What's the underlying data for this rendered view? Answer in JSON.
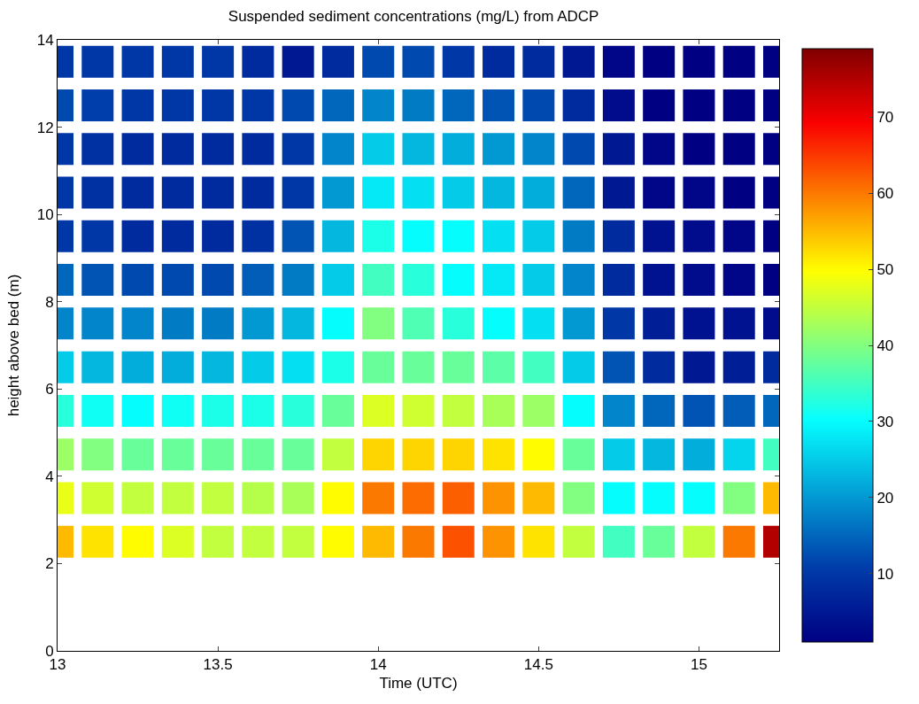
{
  "chart_data": {
    "type": "scatter",
    "title": "Suspended sediment concentrations (mg/L) from ADCP",
    "xlabel": "Time (UTC)",
    "ylabel": "height above bed (m)",
    "marker": "square",
    "x": [
      13,
      13.125,
      13.25,
      13.375,
      13.5,
      13.625,
      13.75,
      13.875,
      14,
      14.125,
      14.25,
      14.375,
      14.5,
      14.625,
      14.75,
      14.875,
      15,
      15.125,
      15.25,
      13,
      13.125,
      13.25,
      13.375,
      13.5,
      13.625,
      13.75,
      13.875,
      14,
      14.125,
      14.25,
      14.375,
      14.5,
      14.625,
      14.75,
      14.875,
      15,
      15.125,
      15.25,
      13,
      13.125,
      13.25,
      13.375,
      13.5,
      13.625,
      13.75,
      13.875,
      14,
      14.125,
      14.25,
      14.375,
      14.5,
      14.625,
      14.75,
      14.875,
      15,
      15.125,
      15.25,
      13,
      13.125,
      13.25,
      13.375,
      13.5,
      13.625,
      13.75,
      13.875,
      14,
      14.125,
      14.25,
      14.375,
      14.5,
      14.625,
      14.75,
      14.875,
      15,
      15.125,
      15.25,
      13,
      13.125,
      13.25,
      13.375,
      13.5,
      13.625,
      13.75,
      13.875,
      14,
      14.125,
      14.25,
      14.375,
      14.5,
      14.625,
      14.75,
      14.875,
      15,
      15.125,
      15.25,
      13,
      13.125,
      13.25,
      13.375,
      13.5,
      13.625,
      13.75,
      13.875,
      14,
      14.125,
      14.25,
      14.375,
      14.5,
      14.625,
      14.75,
      14.875,
      15,
      15.125,
      15.25,
      13,
      13.125,
      13.25,
      13.375,
      13.5,
      13.625,
      13.75,
      13.875,
      14,
      14.125,
      14.25,
      14.375,
      14.5,
      14.625,
      14.75,
      14.875,
      15,
      15.125,
      15.25,
      13,
      13.125,
      13.25,
      13.375,
      13.5,
      13.625,
      13.75,
      13.875,
      14,
      14.125,
      14.25,
      14.375,
      14.5,
      14.625,
      14.75,
      14.875,
      15,
      15.125,
      15.25,
      13,
      13.125,
      13.25,
      13.375,
      13.5,
      13.625,
      13.75,
      13.875,
      14,
      14.125,
      14.25,
      14.375,
      14.5,
      14.625,
      14.75,
      14.875,
      15,
      15.125,
      15.25,
      13,
      13.125,
      13.25,
      13.375,
      13.5,
      13.625,
      13.75,
      13.875,
      14,
      14.125,
      14.25,
      14.375,
      14.5,
      14.625,
      14.75,
      14.875,
      15,
      15.125,
      15.25,
      13,
      13.125,
      13.25,
      13.375,
      13.5,
      13.625,
      13.75,
      13.875,
      14,
      14.125,
      14.25,
      14.375,
      14.5,
      14.625,
      14.75,
      14.875,
      15,
      15.125,
      15.25,
      13,
      13.125,
      13.25,
      13.375,
      13.5,
      13.625,
      13.75,
      13.875,
      14,
      14.125,
      14.25,
      14.375,
      14.5,
      14.625,
      14.75,
      14.875,
      15,
      15.125,
      15.25
    ],
    "values": [
      13.5,
      13.5,
      13.5,
      13.5,
      13.5,
      13.5,
      13.5,
      13.5,
      13.5,
      13.5,
      13.5,
      13.5,
      13.5,
      13.5,
      13.5,
      13.5,
      13.5,
      13.5,
      13.5,
      12.5,
      12.5,
      12.5,
      12.5,
      12.5,
      12.5,
      12.5,
      12.5,
      12.5,
      12.5,
      12.5,
      12.5,
      12.5,
      12.5,
      12.5,
      12.5,
      12.5,
      12.5,
      12.5,
      11.5,
      11.5,
      11.5,
      11.5,
      11.5,
      11.5,
      11.5,
      11.5,
      11.5,
      11.5,
      11.5,
      11.5,
      11.5,
      11.5,
      11.5,
      11.5,
      11.5,
      11.5,
      11.5,
      10.5,
      10.5,
      10.5,
      10.5,
      10.5,
      10.5,
      10.5,
      10.5,
      10.5,
      10.5,
      10.5,
      10.5,
      10.5,
      10.5,
      10.5,
      10.5,
      10.5,
      10.5,
      10.5,
      9.5,
      9.5,
      9.5,
      9.5,
      9.5,
      9.5,
      9.5,
      9.5,
      9.5,
      9.5,
      9.5,
      9.5,
      9.5,
      9.5,
      9.5,
      9.5,
      9.5,
      9.5,
      9.5,
      8.5,
      8.5,
      8.5,
      8.5,
      8.5,
      8.5,
      8.5,
      8.5,
      8.5,
      8.5,
      8.5,
      8.5,
      8.5,
      8.5,
      8.5,
      8.5,
      8.5,
      8.5,
      8.5,
      7.5,
      7.5,
      7.5,
      7.5,
      7.5,
      7.5,
      7.5,
      7.5,
      7.5,
      7.5,
      7.5,
      7.5,
      7.5,
      7.5,
      7.5,
      7.5,
      7.5,
      7.5,
      7.5,
      6.5,
      6.5,
      6.5,
      6.5,
      6.5,
      6.5,
      6.5,
      6.5,
      6.5,
      6.5,
      6.5,
      6.5,
      6.5,
      6.5,
      6.5,
      6.5,
      6.5,
      6.5,
      6.5,
      5.5,
      5.5,
      5.5,
      5.5,
      5.5,
      5.5,
      5.5,
      5.5,
      5.5,
      5.5,
      5.5,
      5.5,
      5.5,
      5.5,
      5.5,
      5.5,
      5.5,
      5.5,
      5.5,
      4.5,
      4.5,
      4.5,
      4.5,
      4.5,
      4.5,
      4.5,
      4.5,
      4.5,
      4.5,
      4.5,
      4.5,
      4.5,
      4.5,
      4.5,
      4.5,
      4.5,
      4.5,
      4.5,
      3.5,
      3.5,
      3.5,
      3.5,
      3.5,
      3.5,
      3.5,
      3.5,
      3.5,
      3.5,
      3.5,
      3.5,
      3.5,
      3.5,
      3.5,
      3.5,
      3.5,
      3.5,
      3.5,
      2.5,
      2.5,
      2.5,
      2.5,
      2.5,
      2.5,
      2.5,
      2.5,
      2.5,
      2.5,
      2.5,
      2.5,
      2.5,
      2.5,
      2.5,
      2.5,
      2.5,
      2.5,
      2.5
    ],
    "cvalues": [
      10,
      10,
      10,
      10,
      10,
      8,
      5,
      8,
      12,
      12,
      10,
      8,
      8,
      5,
      2,
      1,
      1,
      1,
      1,
      12,
      11,
      10,
      10,
      10,
      10,
      12,
      15,
      18,
      17,
      15,
      13,
      12,
      8,
      3,
      1,
      1,
      1,
      1,
      10,
      9,
      8,
      8,
      8,
      8,
      10,
      18,
      25,
      23,
      22,
      20,
      18,
      12,
      5,
      2,
      1,
      1,
      1,
      10,
      9,
      8,
      8,
      8,
      8,
      10,
      20,
      28,
      27,
      25,
      23,
      22,
      15,
      5,
      2,
      2,
      1,
      1,
      10,
      10,
      8,
      8,
      8,
      9,
      13,
      23,
      32,
      30,
      30,
      27,
      25,
      17,
      8,
      4,
      3,
      2,
      1,
      15,
      13,
      12,
      12,
      12,
      14,
      17,
      25,
      35,
      33,
      30,
      28,
      25,
      18,
      8,
      4,
      3,
      2,
      1,
      18,
      18,
      18,
      17,
      17,
      20,
      23,
      30,
      40,
      36,
      33,
      30,
      27,
      20,
      10,
      6,
      4,
      4,
      3,
      25,
      23,
      22,
      22,
      23,
      25,
      27,
      32,
      38,
      38,
      38,
      37,
      35,
      25,
      13,
      8,
      5,
      6,
      8,
      33,
      31,
      30,
      31,
      32,
      32,
      33,
      38,
      47,
      46,
      45,
      43,
      42,
      30,
      18,
      15,
      13,
      14,
      15,
      42,
      40,
      38,
      38,
      38,
      38,
      38,
      45,
      53,
      53,
      53,
      52,
      50,
      38,
      25,
      23,
      22,
      26,
      35,
      48,
      46,
      45,
      45,
      45,
      44,
      43,
      50,
      60,
      61,
      62,
      58,
      55,
      40,
      30,
      30,
      30,
      40,
      55,
      55,
      52,
      50,
      47,
      45,
      45,
      45,
      50,
      55,
      60,
      63,
      58,
      52,
      45,
      35,
      38,
      45,
      60,
      75
    ],
    "xlim": [
      13,
      15.25
    ],
    "xticks": [
      13,
      13.5,
      14,
      14.5,
      15
    ],
    "ylim": [
      0,
      14
    ],
    "yticks": [
      0,
      2,
      4,
      6,
      8,
      10,
      12,
      14
    ],
    "clim": [
      1,
      79
    ],
    "cticks": [
      10,
      20,
      30,
      40,
      50,
      60,
      70
    ],
    "grid": false,
    "legend": false
  }
}
